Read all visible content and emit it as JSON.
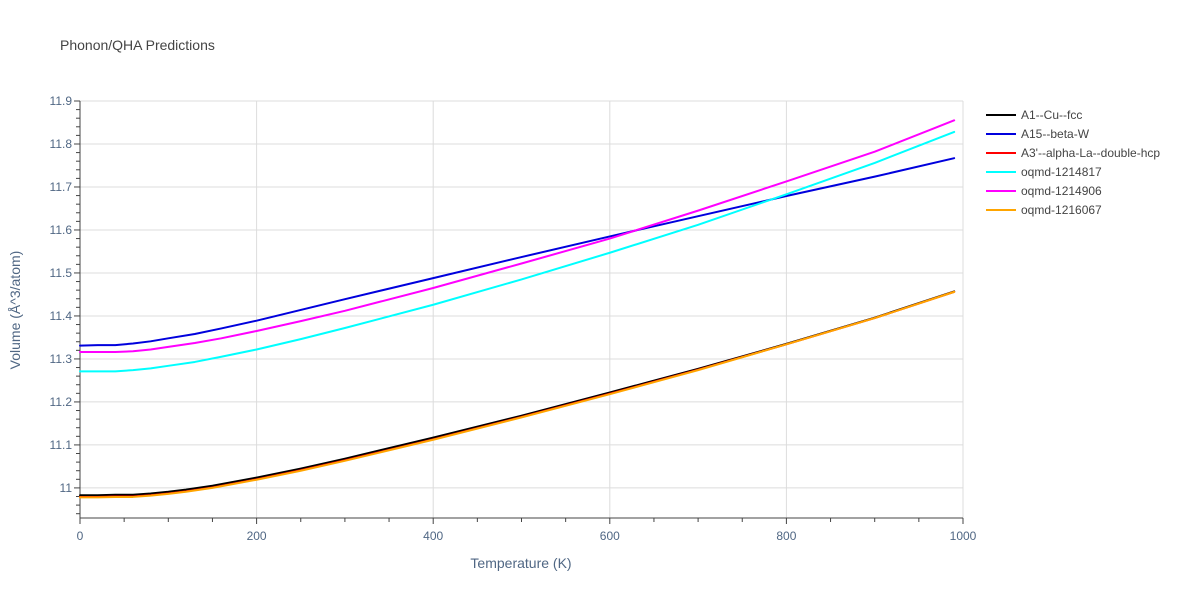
{
  "chart_data": {
    "type": "line",
    "title": "Phonon/QHA Predictions",
    "xlabel": "Temperature (K)",
    "ylabel": "Volume (Å^3/atom)",
    "xlim": [
      0,
      1000
    ],
    "ylim": [
      10.93,
      11.9
    ],
    "x_ticks": [
      0,
      200,
      400,
      600,
      800,
      1000
    ],
    "x_tick_labels": [
      "0",
      "200",
      "400",
      "600",
      "800",
      "1000"
    ],
    "y_ticks": [
      11.0,
      11.1,
      11.2,
      11.3,
      11.4,
      11.5,
      11.6,
      11.7,
      11.8,
      11.9
    ],
    "y_tick_labels": [
      "11",
      "11.1",
      "11.2",
      "11.3",
      "11.4",
      "11.5",
      "11.6",
      "11.7",
      "11.8",
      "11.9"
    ],
    "grid": true,
    "legend_position": "top-right",
    "series": [
      {
        "name": "A1--Cu--fcc",
        "color": "#000000",
        "x": [
          0,
          20,
          40,
          60,
          80,
          100,
          120,
          150,
          200,
          250,
          300,
          400,
          500,
          600,
          700,
          800,
          900,
          990
        ],
        "y": [
          10.983,
          10.983,
          10.984,
          10.984,
          10.987,
          10.991,
          10.996,
          11.005,
          11.024,
          11.045,
          11.068,
          11.117,
          11.168,
          11.222,
          11.277,
          11.335,
          11.396,
          11.457
        ]
      },
      {
        "name": "A15--beta-W",
        "color": "#0000dd",
        "x": [
          0,
          20,
          40,
          60,
          80,
          100,
          130,
          160,
          200,
          250,
          300,
          400,
          500,
          600,
          700,
          800,
          900,
          990
        ],
        "y": [
          11.331,
          11.332,
          11.332,
          11.336,
          11.341,
          11.348,
          11.358,
          11.371,
          11.389,
          11.414,
          11.439,
          11.488,
          11.537,
          11.585,
          11.632,
          11.679,
          11.724,
          11.767
        ]
      },
      {
        "name": "A3'--alpha-La--double-hcp",
        "color": "#ff0000",
        "x": [
          0,
          20,
          40,
          60,
          80,
          100,
          120,
          150,
          200,
          250,
          300,
          400,
          500,
          600,
          700,
          800,
          900,
          990
        ],
        "y": [
          10.979,
          10.979,
          10.98,
          10.98,
          10.983,
          10.987,
          10.992,
          11.001,
          11.02,
          11.041,
          11.064,
          11.113,
          11.165,
          11.219,
          11.275,
          11.334,
          11.395,
          11.456
        ]
      },
      {
        "name": "oqmd-1214817",
        "color": "#00ffff",
        "x": [
          0,
          20,
          40,
          60,
          80,
          100,
          130,
          160,
          200,
          250,
          300,
          400,
          500,
          600,
          700,
          800,
          900,
          990
        ],
        "y": [
          11.271,
          11.271,
          11.271,
          11.274,
          11.278,
          11.284,
          11.293,
          11.305,
          11.322,
          11.346,
          11.372,
          11.426,
          11.485,
          11.547,
          11.612,
          11.683,
          11.756,
          11.828
        ]
      },
      {
        "name": "oqmd-1214906",
        "color": "#ff00ff",
        "x": [
          0,
          20,
          40,
          60,
          80,
          100,
          130,
          160,
          200,
          250,
          300,
          400,
          500,
          600,
          700,
          800,
          900,
          990
        ],
        "y": [
          11.316,
          11.316,
          11.316,
          11.318,
          11.322,
          11.328,
          11.337,
          11.348,
          11.365,
          11.388,
          11.412,
          11.465,
          11.522,
          11.58,
          11.645,
          11.713,
          11.782,
          11.855
        ]
      },
      {
        "name": "oqmd-1216067",
        "color": "#ffa500",
        "x": [
          0,
          20,
          40,
          60,
          80,
          100,
          120,
          150,
          200,
          250,
          300,
          400,
          500,
          600,
          700,
          800,
          900,
          990
        ],
        "y": [
          10.978,
          10.978,
          10.979,
          10.979,
          10.982,
          10.986,
          10.991,
          11.0,
          11.019,
          11.04,
          11.063,
          11.112,
          11.164,
          11.218,
          11.274,
          11.334,
          11.395,
          11.456
        ]
      }
    ]
  }
}
